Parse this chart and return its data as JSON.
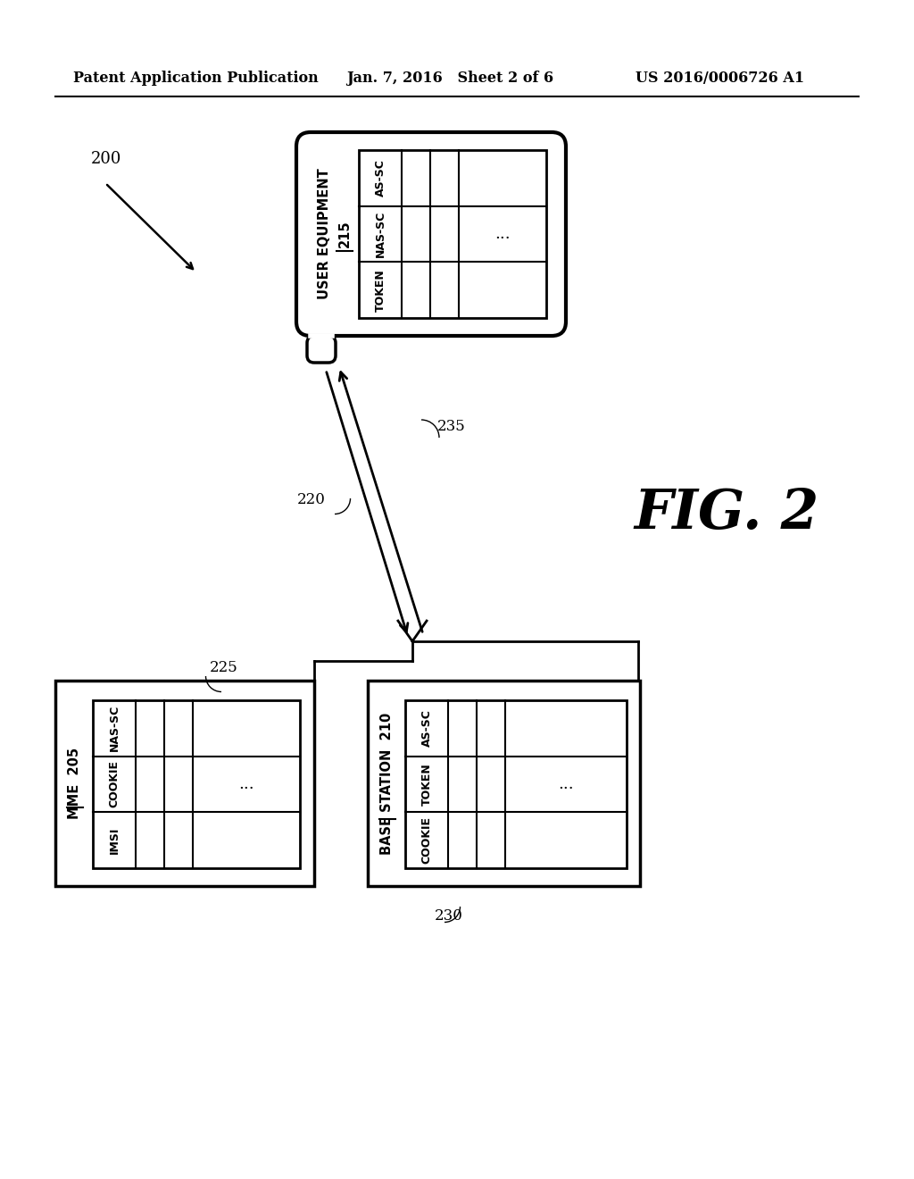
{
  "header_left": "Patent Application Publication",
  "header_mid": "Jan. 7, 2016   Sheet 2 of 6",
  "header_right": "US 2016/0006726 A1",
  "fig_label": "FIG. 2",
  "diagram_label": "200",
  "ue_label": "USER EQUIPMENT",
  "ue_num": "215",
  "mme_label": "MME",
  "mme_num": "205",
  "bs_label": "BASE STATION",
  "bs_num": "210",
  "ue_cols": [
    "AS-SC",
    "NAS-SC",
    "TOKEN"
  ],
  "mme_cols": [
    "NAS-SC",
    "COOKIE",
    "IMSI"
  ],
  "bs_cols": [
    "AS-SC",
    "TOKEN",
    "COOKIE"
  ],
  "label_220": "220",
  "label_235": "235",
  "label_225": "225",
  "label_230": "230",
  "bg_color": "#ffffff",
  "lc": "#000000"
}
